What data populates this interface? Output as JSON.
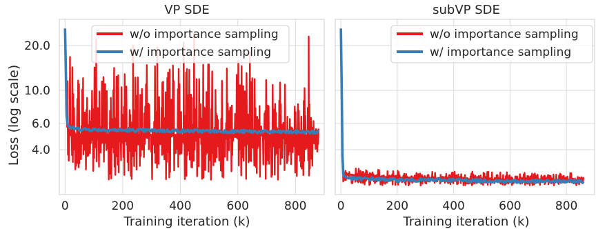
{
  "figure": {
    "ylabel": "Loss (log scale)",
    "colors": {
      "without": "#e41a1c",
      "with": "#377eb8",
      "grid": "#d9d9d9",
      "frame": "#cfcfcf",
      "text": "#262626"
    }
  },
  "chart_data": [
    {
      "type": "line",
      "title": "VP SDE",
      "xlabel": "Training iteration (k)",
      "ylabel": "Loss (log scale)",
      "yscale": "log",
      "xlim": [
        -20,
        900
      ],
      "ylim": [
        2.0,
        30.0
      ],
      "x_ticks": [
        0,
        200,
        400,
        600,
        800
      ],
      "x_tick_labels": [
        "0",
        "200",
        "400",
        "600",
        "800"
      ],
      "y_ticks": [
        4.0,
        6.0,
        10.0,
        20.0
      ],
      "y_tick_labels": [
        "4.0",
        "6.0",
        "10.0",
        "20.0"
      ],
      "grid": true,
      "legend_position": "top",
      "series": [
        {
          "name": "w/o importance sampling",
          "color": "#e41a1c",
          "x": [
            0,
            5,
            10,
            20,
            40,
            100,
            200,
            300,
            400,
            500,
            600,
            700,
            800,
            880
          ],
          "y": [
            26.0,
            9.0,
            5.5,
            5.0,
            5.0,
            5.0,
            5.0,
            5.0,
            5.0,
            5.0,
            5.0,
            5.0,
            5.0,
            5.0
          ],
          "band_low": [
            26.0,
            4.0,
            3.5,
            3.0,
            2.6,
            2.5,
            2.5,
            2.5,
            2.5,
            2.5,
            2.5,
            2.5,
            2.5,
            2.5
          ],
          "band_high": [
            26.0,
            12.0,
            15.0,
            18.0,
            16.0,
            17.0,
            16.0,
            15.0,
            17.0,
            15.0,
            16.0,
            14.0,
            12.0,
            11.0
          ],
          "peaks": [
            {
              "x": 108,
              "y": 22.0
            },
            {
              "x": 236,
              "y": 20.0
            },
            {
              "x": 320,
              "y": 19.5
            },
            {
              "x": 412,
              "y": 21.0
            },
            {
              "x": 448,
              "y": 24.0
            },
            {
              "x": 642,
              "y": 18.0
            },
            {
              "x": 846,
              "y": 23.0
            }
          ]
        },
        {
          "name": "w/ importance sampling",
          "color": "#377eb8",
          "x": [
            0,
            3,
            6,
            10,
            20,
            50,
            100,
            200,
            400,
            600,
            800,
            880
          ],
          "y": [
            26.0,
            12.0,
            6.5,
            5.8,
            5.6,
            5.5,
            5.45,
            5.4,
            5.35,
            5.3,
            5.25,
            5.25
          ]
        }
      ]
    },
    {
      "type": "line",
      "title": "subVP SDE",
      "xlabel": "Training iteration (k)",
      "yscale": "log",
      "xlim": [
        -20,
        900
      ],
      "ylim": [
        2.0,
        30.0
      ],
      "x_ticks": [
        0,
        200,
        400,
        600,
        800
      ],
      "x_tick_labels": [
        "0",
        "200",
        "400",
        "600",
        "800"
      ],
      "y_ticks": [
        4.0,
        6.0,
        10.0,
        20.0
      ],
      "grid": true,
      "legend_position": "top-right",
      "series": [
        {
          "name": "w/o importance sampling",
          "color": "#e41a1c",
          "x": [
            0,
            3,
            6,
            10,
            20,
            50,
            100,
            200,
            400,
            600,
            800,
            860
          ],
          "y": [
            26.0,
            8.0,
            3.2,
            2.75,
            2.75,
            2.7,
            2.65,
            2.6,
            2.55,
            2.5,
            2.5,
            2.5
          ],
          "band_low": [
            26.0,
            5.0,
            2.5,
            2.35,
            2.35,
            2.3,
            2.3,
            2.3,
            2.3,
            2.3,
            2.3,
            2.3
          ],
          "band_high": [
            26.0,
            10.0,
            3.4,
            3.2,
            3.1,
            3.0,
            2.95,
            2.9,
            2.85,
            2.85,
            2.8,
            2.8
          ]
        },
        {
          "name": "w/ importance sampling",
          "color": "#377eb8",
          "x": [
            0,
            3,
            6,
            10,
            20,
            50,
            100,
            200,
            400,
            600,
            800,
            860
          ],
          "y": [
            26.0,
            10.0,
            3.0,
            2.65,
            2.6,
            2.55,
            2.55,
            2.5,
            2.5,
            2.45,
            2.45,
            2.45
          ]
        }
      ]
    }
  ]
}
